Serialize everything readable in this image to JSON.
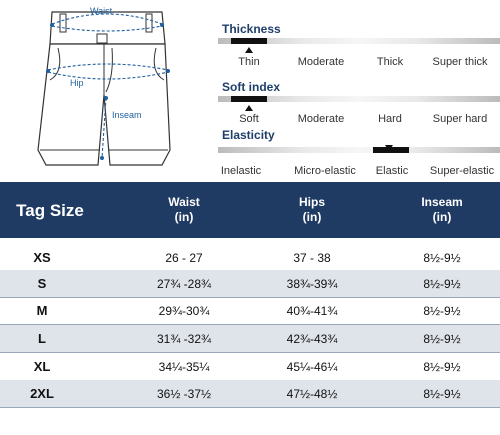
{
  "diagram": {
    "waist_label": "Waist",
    "hip_label": "Hip",
    "inseam_label": "Inseam"
  },
  "scales": [
    {
      "title": "Thickness",
      "options": [
        "Thin",
        "Moderate",
        "Thick",
        "Super thick"
      ],
      "selected": "Thin",
      "marker": "up"
    },
    {
      "title": "Soft index",
      "options": [
        "Soft",
        "Moderate",
        "Hard",
        "Super hard"
      ],
      "selected": "Soft",
      "marker": "up"
    },
    {
      "title": "Elasticity",
      "options": [
        "Inelastic",
        "Micro-elastic",
        "Elastic",
        "Super-elastic"
      ],
      "selected": "Elastic",
      "marker": "down"
    }
  ],
  "size_table": {
    "header": {
      "size": "Tag Size",
      "waist": "Waist",
      "waist_unit": "(in)",
      "hips": "Hips",
      "hips_unit": "(in)",
      "inseam": "Inseam",
      "inseam_unit": "(in)"
    },
    "rows": [
      {
        "size": "XS",
        "waist": "26 - 27",
        "hips": "37 - 38",
        "inseam": "8½-9½"
      },
      {
        "size": "S",
        "waist": "27¾ -28¾",
        "hips": "38¾-39¾",
        "inseam": "8½-9½"
      },
      {
        "size": "M",
        "waist": "29¾-30¾",
        "hips": "40¾-41¾",
        "inseam": "8½-9½"
      },
      {
        "size": "L",
        "waist": "31¾ -32¾",
        "hips": "42¾-43¾",
        "inseam": "8½-9½"
      },
      {
        "size": "XL",
        "waist": "34¼-35¼",
        "hips": "45¼-46¼",
        "inseam": "8½-9½"
      },
      {
        "size": "2XL",
        "waist": "36½ -37½",
        "hips": "47½-48½",
        "inseam": "8½-9½"
      }
    ]
  },
  "colors": {
    "header_bg": "#1f3a63",
    "row_shade": "#dfe3ea",
    "accent": "#1f5f9f"
  }
}
